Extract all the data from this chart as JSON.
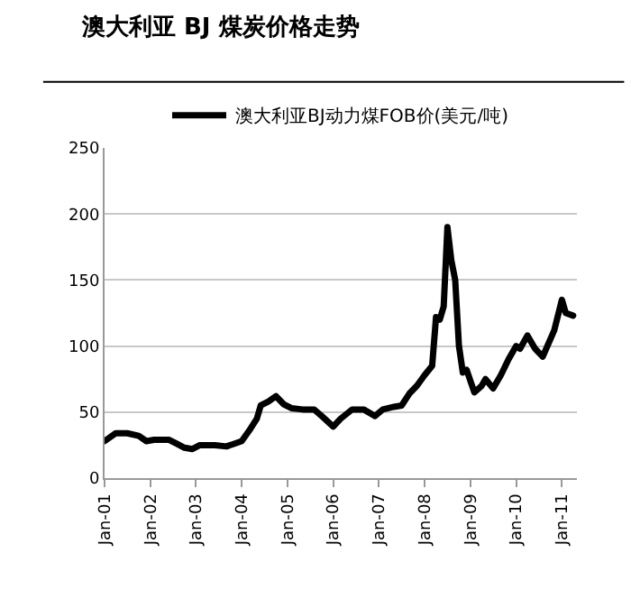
{
  "chart_data": {
    "type": "line",
    "title": "澳大利亚 BJ 煤炭价格走势",
    "x": [
      "2001-01",
      "2001-04",
      "2001-07",
      "2001-10",
      "2001-12",
      "2002-02",
      "2002-06",
      "2002-08",
      "2002-10",
      "2002-12",
      "2003-02",
      "2003-06",
      "2003-09",
      "2003-11",
      "2004-01",
      "2004-03",
      "2004-05",
      "2004-06",
      "2004-08",
      "2004-10",
      "2004-12",
      "2005-02",
      "2005-05",
      "2005-08",
      "2005-10",
      "2006-01",
      "2006-03",
      "2006-06",
      "2006-09",
      "2006-12",
      "2007-02",
      "2007-05",
      "2007-07",
      "2007-09",
      "2007-11",
      "2008-01",
      "2008-03",
      "2008-04",
      "2008-05",
      "2008-06",
      "2008-07",
      "2008-08",
      "2008-09",
      "2008-10",
      "2008-11",
      "2008-12",
      "2009-02",
      "2009-04",
      "2009-05",
      "2009-07",
      "2009-09",
      "2009-11",
      "2010-01",
      "2010-02",
      "2010-04",
      "2010-06",
      "2010-08",
      "2010-11",
      "2011-01",
      "2011-02",
      "2011-04"
    ],
    "series": [
      {
        "name": "澳大利亚BJ动力煤FOB价(美元/吨)",
        "color": "#000000",
        "values": [
          28,
          34,
          34,
          32,
          28,
          29,
          29,
          26,
          23,
          22,
          25,
          25,
          24,
          26,
          28,
          36,
          45,
          55,
          58,
          62,
          56,
          53,
          52,
          52,
          47,
          39,
          45,
          52,
          52,
          47,
          52,
          54,
          55,
          64,
          70,
          78,
          85,
          122,
          120,
          130,
          190,
          165,
          150,
          100,
          80,
          82,
          65,
          70,
          75,
          68,
          78,
          90,
          100,
          98,
          108,
          98,
          92,
          112,
          135,
          125,
          123
        ]
      }
    ],
    "xlim": [
      "2001-01",
      "2011-05"
    ],
    "xticks": [
      {
        "value": "2001-01",
        "label": "Jan-01"
      },
      {
        "value": "2002-01",
        "label": "Jan-02"
      },
      {
        "value": "2003-01",
        "label": "Jan-03"
      },
      {
        "value": "2004-01",
        "label": "Jan-04"
      },
      {
        "value": "2005-01",
        "label": "Jan-05"
      },
      {
        "value": "2006-01",
        "label": "Jan-06"
      },
      {
        "value": "2007-01",
        "label": "Jan-07"
      },
      {
        "value": "2008-01",
        "label": "Jan-08"
      },
      {
        "value": "2009-01",
        "label": "Jan-09"
      },
      {
        "value": "2010-01",
        "label": "Jan-10"
      },
      {
        "value": "2011-01",
        "label": "Jan-11"
      }
    ],
    "ylim": [
      0,
      250
    ],
    "yticks": [
      0,
      50,
      100,
      150,
      200,
      250
    ],
    "grid": "y",
    "legend": "top",
    "marker": "none",
    "line_style": "solid"
  }
}
